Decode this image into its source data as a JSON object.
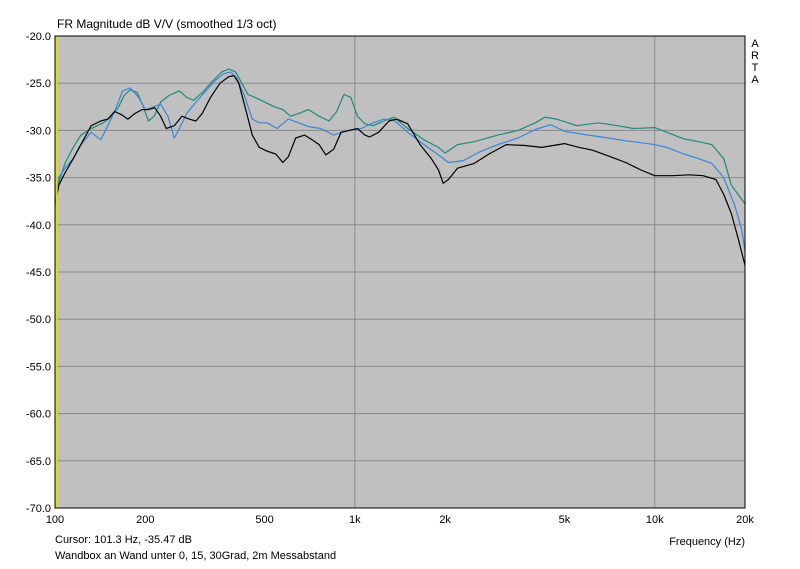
{
  "chart_data": {
    "type": "line",
    "title": "FR Magnitude dB V/V (smoothed 1/3 oct)",
    "brand": [
      "A",
      "R",
      "T",
      "A"
    ],
    "xlabel": "Frequency (Hz)",
    "x_scale": "log",
    "xlim": [
      100,
      20000
    ],
    "ylim": [
      -70,
      -20
    ],
    "x_ticks": [
      {
        "value": 100,
        "label": "100"
      },
      {
        "value": 200,
        "label": "200"
      },
      {
        "value": 500,
        "label": "500"
      },
      {
        "value": 1000,
        "label": "1k"
      },
      {
        "value": 2000,
        "label": "2k"
      },
      {
        "value": 5000,
        "label": "5k"
      },
      {
        "value": 10000,
        "label": "10k"
      },
      {
        "value": 20000,
        "label": "20k"
      }
    ],
    "y_ticks": [
      {
        "value": -20,
        "label": "-20.0"
      },
      {
        "value": -25,
        "label": "-25.0"
      },
      {
        "value": -30,
        "label": "-30.0"
      },
      {
        "value": -35,
        "label": "-35.0"
      },
      {
        "value": -40,
        "label": "-40.0"
      },
      {
        "value": -45,
        "label": "-45.0"
      },
      {
        "value": -50,
        "label": "-50.0"
      },
      {
        "value": -55,
        "label": "-55.0"
      },
      {
        "value": -60,
        "label": "-60.0"
      },
      {
        "value": -65,
        "label": "-65.0"
      },
      {
        "value": -70,
        "label": "-70.0"
      }
    ],
    "grid": true,
    "colors": {
      "plot_background": "#c0c0c0",
      "grid": "#8a8a8a",
      "cursor": "#e0e000"
    },
    "cursor": {
      "x": 101.3,
      "y": -35.47
    },
    "series": [
      {
        "color": "#208a78",
        "points": [
          [
            100,
            -37.5
          ],
          [
            103,
            -35.5
          ],
          [
            108,
            -33.5
          ],
          [
            115,
            -31.8
          ],
          [
            122,
            -30.5
          ],
          [
            132,
            -29.8
          ],
          [
            145,
            -29.2
          ],
          [
            155,
            -28.5
          ],
          [
            163,
            -27.5
          ],
          [
            170,
            -26.3
          ],
          [
            178,
            -25.7
          ],
          [
            188,
            -26
          ],
          [
            197,
            -27.5
          ],
          [
            205,
            -29
          ],
          [
            214,
            -28.5
          ],
          [
            225,
            -27
          ],
          [
            240,
            -26.3
          ],
          [
            260,
            -25.8
          ],
          [
            275,
            -26.5
          ],
          [
            290,
            -26.8
          ],
          [
            310,
            -26
          ],
          [
            335,
            -24.8
          ],
          [
            360,
            -23.8
          ],
          [
            380,
            -23.5
          ],
          [
            400,
            -23.8
          ],
          [
            420,
            -25
          ],
          [
            440,
            -26.2
          ],
          [
            465,
            -26.5
          ],
          [
            500,
            -27
          ],
          [
            540,
            -27.5
          ],
          [
            575,
            -27.8
          ],
          [
            610,
            -28.5
          ],
          [
            650,
            -28.2
          ],
          [
            700,
            -27.8
          ],
          [
            760,
            -28.5
          ],
          [
            820,
            -29
          ],
          [
            870,
            -28
          ],
          [
            920,
            -26.2
          ],
          [
            970,
            -26.5
          ],
          [
            1020,
            -28.5
          ],
          [
            1080,
            -29.3
          ],
          [
            1150,
            -29.5
          ],
          [
            1250,
            -29
          ],
          [
            1350,
            -28.6
          ],
          [
            1500,
            -29.8
          ],
          [
            1700,
            -31
          ],
          [
            1900,
            -31.8
          ],
          [
            2000,
            -32.4
          ],
          [
            2200,
            -31.5
          ],
          [
            2500,
            -31.2
          ],
          [
            3000,
            -30.5
          ],
          [
            3500,
            -30
          ],
          [
            4000,
            -29.2
          ],
          [
            4300,
            -28.6
          ],
          [
            4700,
            -28.8
          ],
          [
            5500,
            -29.5
          ],
          [
            6500,
            -29.2
          ],
          [
            7500,
            -29.5
          ],
          [
            8500,
            -29.8
          ],
          [
            10000,
            -29.7
          ],
          [
            11000,
            -30.2
          ],
          [
            12500,
            -30.9
          ],
          [
            14000,
            -31.2
          ],
          [
            15500,
            -31.5
          ],
          [
            17000,
            -33
          ],
          [
            18000,
            -35.8
          ],
          [
            19000,
            -36.8
          ],
          [
            20000,
            -37.8
          ]
        ]
      },
      {
        "color": "#3a86d8",
        "points": [
          [
            100,
            -36.5
          ],
          [
            103,
            -35
          ],
          [
            108,
            -34
          ],
          [
            115,
            -33
          ],
          [
            122,
            -31.5
          ],
          [
            132,
            -30.2
          ],
          [
            142,
            -31
          ],
          [
            150,
            -29.5
          ],
          [
            158,
            -28
          ],
          [
            168,
            -25.8
          ],
          [
            178,
            -25.5
          ],
          [
            190,
            -26.5
          ],
          [
            200,
            -27.8
          ],
          [
            213,
            -27.5
          ],
          [
            225,
            -27.2
          ],
          [
            238,
            -28.5
          ],
          [
            250,
            -30.8
          ],
          [
            260,
            -29.8
          ],
          [
            275,
            -28.2
          ],
          [
            295,
            -27
          ],
          [
            315,
            -26
          ],
          [
            340,
            -24.8
          ],
          [
            365,
            -24
          ],
          [
            385,
            -23.8
          ],
          [
            405,
            -24.5
          ],
          [
            430,
            -26.5
          ],
          [
            455,
            -28.8
          ],
          [
            480,
            -29.2
          ],
          [
            510,
            -29.2
          ],
          [
            550,
            -29.8
          ],
          [
            600,
            -28.8
          ],
          [
            650,
            -29.2
          ],
          [
            700,
            -29.6
          ],
          [
            770,
            -29.8
          ],
          [
            850,
            -30.5
          ],
          [
            950,
            -30
          ],
          [
            1050,
            -29.8
          ],
          [
            1150,
            -29.2
          ],
          [
            1250,
            -28.8
          ],
          [
            1350,
            -28.9
          ],
          [
            1500,
            -30.2
          ],
          [
            1700,
            -31.5
          ],
          [
            1900,
            -32.6
          ],
          [
            2050,
            -33.4
          ],
          [
            2300,
            -33.2
          ],
          [
            2600,
            -32.3
          ],
          [
            3000,
            -31.5
          ],
          [
            3500,
            -30.8
          ],
          [
            4000,
            -29.9
          ],
          [
            4500,
            -29.4
          ],
          [
            5000,
            -30.1
          ],
          [
            6000,
            -30.5
          ],
          [
            7000,
            -30.8
          ],
          [
            8000,
            -31.1
          ],
          [
            9000,
            -31.3
          ],
          [
            10000,
            -31.5
          ],
          [
            11000,
            -31.8
          ],
          [
            12500,
            -32.5
          ],
          [
            14000,
            -33
          ],
          [
            15500,
            -33.5
          ],
          [
            17000,
            -35
          ],
          [
            18500,
            -38
          ],
          [
            19500,
            -40.5
          ],
          [
            20000,
            -42.8
          ]
        ]
      },
      {
        "color": "#000000",
        "points": [
          [
            100,
            -38
          ],
          [
            103,
            -35.8
          ],
          [
            108,
            -34.5
          ],
          [
            115,
            -33
          ],
          [
            122,
            -31.5
          ],
          [
            132,
            -29.5
          ],
          [
            142,
            -29
          ],
          [
            150,
            -28.8
          ],
          [
            158,
            -28
          ],
          [
            166,
            -28.3
          ],
          [
            175,
            -28.8
          ],
          [
            185,
            -28.2
          ],
          [
            195,
            -27.8
          ],
          [
            205,
            -27.8
          ],
          [
            215,
            -27.6
          ],
          [
            225,
            -28.5
          ],
          [
            235,
            -29.8
          ],
          [
            250,
            -29.5
          ],
          [
            265,
            -28.5
          ],
          [
            280,
            -28.8
          ],
          [
            295,
            -29
          ],
          [
            310,
            -28.2
          ],
          [
            330,
            -26.5
          ],
          [
            355,
            -25
          ],
          [
            380,
            -24.3
          ],
          [
            395,
            -24.2
          ],
          [
            410,
            -25
          ],
          [
            430,
            -27.5
          ],
          [
            455,
            -30.5
          ],
          [
            480,
            -31.8
          ],
          [
            510,
            -32.2
          ],
          [
            545,
            -32.5
          ],
          [
            575,
            -33.4
          ],
          [
            600,
            -32.8
          ],
          [
            635,
            -30.8
          ],
          [
            680,
            -30.5
          ],
          [
            720,
            -31
          ],
          [
            760,
            -31.5
          ],
          [
            800,
            -32.6
          ],
          [
            850,
            -32
          ],
          [
            900,
            -30.2
          ],
          [
            960,
            -30
          ],
          [
            1020,
            -29.8
          ],
          [
            1080,
            -30.5
          ],
          [
            1120,
            -30.7
          ],
          [
            1200,
            -30.2
          ],
          [
            1300,
            -29
          ],
          [
            1380,
            -28.8
          ],
          [
            1500,
            -29.3
          ],
          [
            1650,
            -31.5
          ],
          [
            1800,
            -33
          ],
          [
            1900,
            -34.2
          ],
          [
            1970,
            -35.6
          ],
          [
            2050,
            -35.2
          ],
          [
            2200,
            -34
          ],
          [
            2500,
            -33.5
          ],
          [
            2800,
            -32.5
          ],
          [
            3200,
            -31.5
          ],
          [
            3700,
            -31.6
          ],
          [
            4200,
            -31.8
          ],
          [
            5000,
            -31.4
          ],
          [
            5600,
            -31.8
          ],
          [
            6200,
            -32.1
          ],
          [
            7000,
            -32.7
          ],
          [
            8000,
            -33.4
          ],
          [
            9000,
            -34.2
          ],
          [
            10000,
            -34.8
          ],
          [
            11500,
            -34.8
          ],
          [
            13000,
            -34.7
          ],
          [
            14500,
            -34.8
          ],
          [
            16000,
            -35.2
          ],
          [
            17000,
            -36.8
          ],
          [
            18000,
            -38.8
          ],
          [
            19000,
            -41.5
          ],
          [
            20000,
            -44.3
          ]
        ]
      }
    ]
  },
  "footer": {
    "cursor_label": "Cursor: 101.3 Hz, -35.47 dB",
    "description": "Wandbox an Wand unter 0, 15, 30Grad, 2m Messabstand"
  }
}
